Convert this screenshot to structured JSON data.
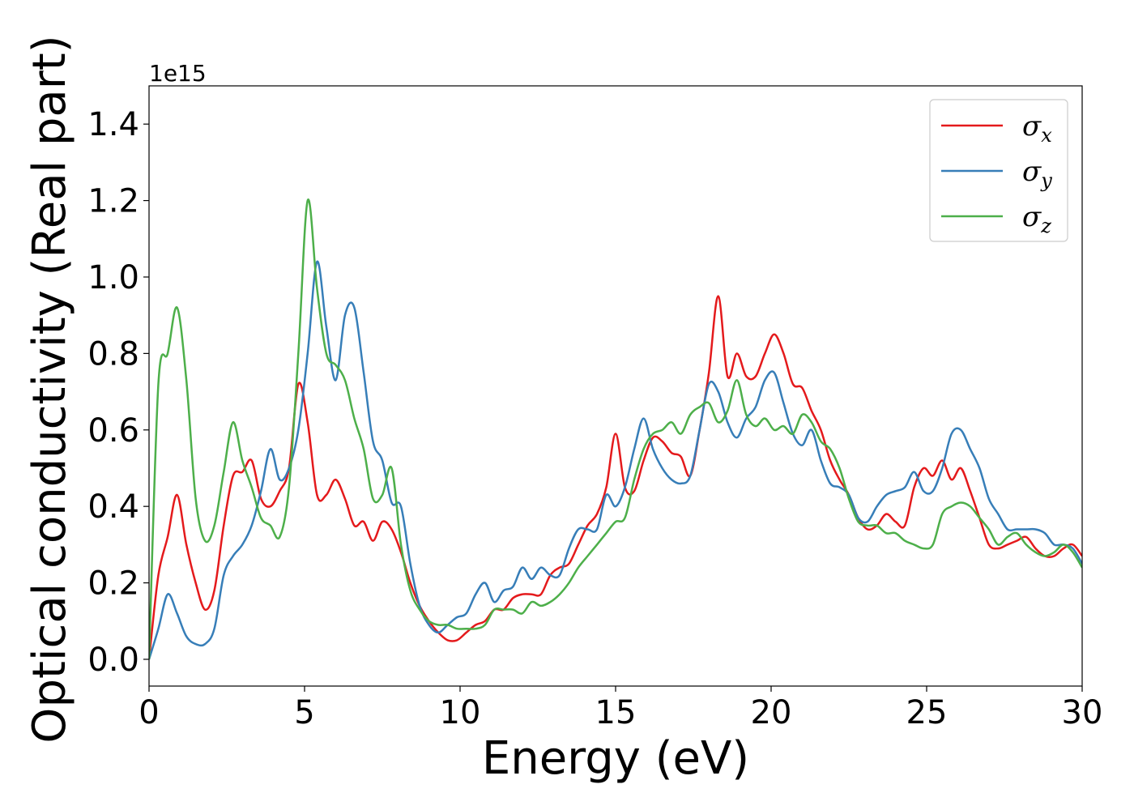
{
  "chart_data": {
    "type": "line",
    "xlabel": "Energy (eV)",
    "ylabel": "Optical conductivity (Real part)",
    "y_offset_label": "1e15",
    "xlim": [
      0,
      30
    ],
    "ylim": [
      -0.07,
      1.5
    ],
    "x_ticks": [
      0,
      5,
      10,
      15,
      20,
      25,
      30
    ],
    "x_tick_labels": [
      "0",
      "5",
      "10",
      "15",
      "20",
      "25",
      "30"
    ],
    "y_ticks": [
      0.0,
      0.2,
      0.4,
      0.6,
      0.8,
      1.0,
      1.2,
      1.4
    ],
    "y_tick_labels": [
      "0.0",
      "0.2",
      "0.4",
      "0.6",
      "0.8",
      "1.0",
      "1.2",
      "1.4"
    ],
    "grid": false,
    "legend": {
      "position": "top-right",
      "entries": [
        {
          "symbol": "σ",
          "sub": "x",
          "color": "#e41a1c"
        },
        {
          "symbol": "σ",
          "sub": "y",
          "color": "#377eb8"
        },
        {
          "symbol": "σ",
          "sub": "z",
          "color": "#4daf4a"
        }
      ]
    },
    "series": [
      {
        "color": "#e41a1c",
        "x": [
          0,
          0.3,
          0.6,
          0.9,
          1.2,
          1.5,
          1.8,
          2.1,
          2.4,
          2.7,
          3.0,
          3.3,
          3.6,
          3.9,
          4.2,
          4.5,
          4.8,
          5.1,
          5.4,
          5.7,
          6.0,
          6.3,
          6.6,
          6.9,
          7.2,
          7.5,
          7.8,
          8.1,
          8.4,
          8.7,
          9.0,
          9.3,
          9.6,
          9.9,
          10.2,
          10.5,
          10.8,
          11.1,
          11.4,
          11.7,
          12.0,
          12.3,
          12.6,
          12.9,
          13.2,
          13.5,
          13.8,
          14.1,
          14.4,
          14.7,
          15.0,
          15.3,
          15.6,
          15.9,
          16.2,
          16.5,
          16.8,
          17.1,
          17.4,
          17.7,
          18.0,
          18.3,
          18.6,
          18.9,
          19.2,
          19.5,
          19.8,
          20.1,
          20.4,
          20.7,
          21.0,
          21.3,
          21.6,
          21.9,
          22.2,
          22.5,
          22.8,
          23.1,
          23.4,
          23.7,
          24.0,
          24.3,
          24.6,
          24.9,
          25.2,
          25.5,
          25.8,
          26.1,
          26.4,
          26.7,
          27.0,
          27.3,
          27.6,
          27.9,
          28.2,
          28.5,
          28.8,
          29.1,
          29.4,
          29.7,
          30.0
        ],
        "values": [
          0.0,
          0.22,
          0.32,
          0.43,
          0.3,
          0.2,
          0.13,
          0.18,
          0.35,
          0.48,
          0.49,
          0.52,
          0.42,
          0.4,
          0.44,
          0.5,
          0.72,
          0.62,
          0.43,
          0.43,
          0.47,
          0.42,
          0.35,
          0.36,
          0.31,
          0.36,
          0.34,
          0.28,
          0.2,
          0.14,
          0.1,
          0.07,
          0.05,
          0.05,
          0.07,
          0.09,
          0.1,
          0.13,
          0.13,
          0.16,
          0.17,
          0.17,
          0.17,
          0.22,
          0.24,
          0.25,
          0.3,
          0.35,
          0.38,
          0.45,
          0.59,
          0.45,
          0.44,
          0.52,
          0.58,
          0.57,
          0.54,
          0.53,
          0.48,
          0.6,
          0.75,
          0.95,
          0.74,
          0.8,
          0.74,
          0.74,
          0.8,
          0.85,
          0.8,
          0.72,
          0.71,
          0.65,
          0.6,
          0.52,
          0.47,
          0.43,
          0.37,
          0.34,
          0.35,
          0.38,
          0.36,
          0.35,
          0.45,
          0.5,
          0.48,
          0.52,
          0.47,
          0.5,
          0.44,
          0.37,
          0.3,
          0.29,
          0.3,
          0.31,
          0.32,
          0.29,
          0.27,
          0.27,
          0.29,
          0.3,
          0.27
        ]
      },
      {
        "color": "#377eb8",
        "x": [
          0,
          0.3,
          0.6,
          0.9,
          1.2,
          1.5,
          1.8,
          2.1,
          2.4,
          2.7,
          3.0,
          3.3,
          3.6,
          3.9,
          4.2,
          4.5,
          4.8,
          5.1,
          5.4,
          5.7,
          6.0,
          6.3,
          6.6,
          6.9,
          7.2,
          7.5,
          7.8,
          8.1,
          8.4,
          8.7,
          9.0,
          9.3,
          9.6,
          9.9,
          10.2,
          10.5,
          10.8,
          11.1,
          11.4,
          11.7,
          12.0,
          12.3,
          12.6,
          12.9,
          13.2,
          13.5,
          13.8,
          14.1,
          14.4,
          14.7,
          15.0,
          15.3,
          15.6,
          15.9,
          16.2,
          16.5,
          16.8,
          17.1,
          17.4,
          17.7,
          18.0,
          18.3,
          18.6,
          18.9,
          19.2,
          19.5,
          19.8,
          20.1,
          20.4,
          20.7,
          21.0,
          21.3,
          21.6,
          21.9,
          22.2,
          22.5,
          22.8,
          23.1,
          23.4,
          23.7,
          24.0,
          24.3,
          24.6,
          24.9,
          25.2,
          25.5,
          25.8,
          26.1,
          26.4,
          26.7,
          27.0,
          27.3,
          27.6,
          27.9,
          28.2,
          28.5,
          28.8,
          29.1,
          29.4,
          29.7,
          30.0
        ],
        "values": [
          0.0,
          0.08,
          0.17,
          0.12,
          0.06,
          0.04,
          0.04,
          0.08,
          0.22,
          0.27,
          0.3,
          0.35,
          0.44,
          0.55,
          0.47,
          0.5,
          0.6,
          0.8,
          1.04,
          0.87,
          0.73,
          0.9,
          0.92,
          0.75,
          0.57,
          0.52,
          0.41,
          0.4,
          0.25,
          0.14,
          0.09,
          0.07,
          0.09,
          0.11,
          0.12,
          0.17,
          0.2,
          0.15,
          0.18,
          0.19,
          0.24,
          0.21,
          0.24,
          0.22,
          0.22,
          0.29,
          0.34,
          0.34,
          0.34,
          0.43,
          0.4,
          0.45,
          0.55,
          0.63,
          0.55,
          0.5,
          0.47,
          0.46,
          0.48,
          0.6,
          0.72,
          0.7,
          0.62,
          0.58,
          0.63,
          0.66,
          0.73,
          0.75,
          0.67,
          0.59,
          0.56,
          0.6,
          0.52,
          0.46,
          0.45,
          0.43,
          0.37,
          0.36,
          0.4,
          0.43,
          0.44,
          0.45,
          0.49,
          0.44,
          0.44,
          0.5,
          0.59,
          0.6,
          0.55,
          0.5,
          0.42,
          0.38,
          0.34,
          0.34,
          0.34,
          0.34,
          0.33,
          0.3,
          0.3,
          0.29,
          0.25
        ]
      },
      {
        "color": "#4daf4a",
        "x": [
          0,
          0.3,
          0.6,
          0.9,
          1.2,
          1.5,
          1.8,
          2.1,
          2.4,
          2.7,
          3.0,
          3.3,
          3.6,
          3.9,
          4.2,
          4.5,
          4.8,
          5.1,
          5.4,
          5.7,
          6.0,
          6.3,
          6.6,
          6.9,
          7.2,
          7.5,
          7.8,
          8.1,
          8.4,
          8.7,
          9.0,
          9.3,
          9.6,
          9.9,
          10.2,
          10.5,
          10.8,
          11.1,
          11.4,
          11.7,
          12.0,
          12.3,
          12.6,
          12.9,
          13.2,
          13.5,
          13.8,
          14.1,
          14.4,
          14.7,
          15.0,
          15.3,
          15.6,
          15.9,
          16.2,
          16.5,
          16.8,
          17.1,
          17.4,
          17.7,
          18.0,
          18.3,
          18.6,
          18.9,
          19.2,
          19.5,
          19.8,
          20.1,
          20.4,
          20.7,
          21.0,
          21.3,
          21.6,
          21.9,
          22.2,
          22.5,
          22.8,
          23.1,
          23.4,
          23.7,
          24.0,
          24.3,
          24.6,
          24.9,
          25.2,
          25.5,
          25.8,
          26.1,
          26.4,
          26.7,
          27.0,
          27.3,
          27.6,
          27.9,
          28.2,
          28.5,
          28.8,
          29.1,
          29.4,
          29.7,
          30.0
        ],
        "values": [
          0.0,
          0.72,
          0.8,
          0.92,
          0.73,
          0.42,
          0.31,
          0.35,
          0.49,
          0.62,
          0.52,
          0.45,
          0.37,
          0.35,
          0.32,
          0.45,
          0.8,
          1.2,
          0.97,
          0.8,
          0.77,
          0.73,
          0.63,
          0.55,
          0.42,
          0.43,
          0.5,
          0.3,
          0.18,
          0.13,
          0.1,
          0.09,
          0.09,
          0.08,
          0.08,
          0.08,
          0.09,
          0.13,
          0.13,
          0.13,
          0.12,
          0.15,
          0.14,
          0.15,
          0.17,
          0.2,
          0.24,
          0.27,
          0.3,
          0.33,
          0.36,
          0.37,
          0.47,
          0.55,
          0.59,
          0.6,
          0.62,
          0.59,
          0.64,
          0.66,
          0.67,
          0.62,
          0.65,
          0.73,
          0.64,
          0.61,
          0.63,
          0.6,
          0.61,
          0.59,
          0.64,
          0.62,
          0.57,
          0.55,
          0.5,
          0.42,
          0.36,
          0.35,
          0.35,
          0.33,
          0.33,
          0.31,
          0.3,
          0.29,
          0.3,
          0.38,
          0.4,
          0.41,
          0.4,
          0.37,
          0.34,
          0.3,
          0.32,
          0.33,
          0.3,
          0.28,
          0.27,
          0.28,
          0.3,
          0.28,
          0.24
        ]
      }
    ]
  }
}
